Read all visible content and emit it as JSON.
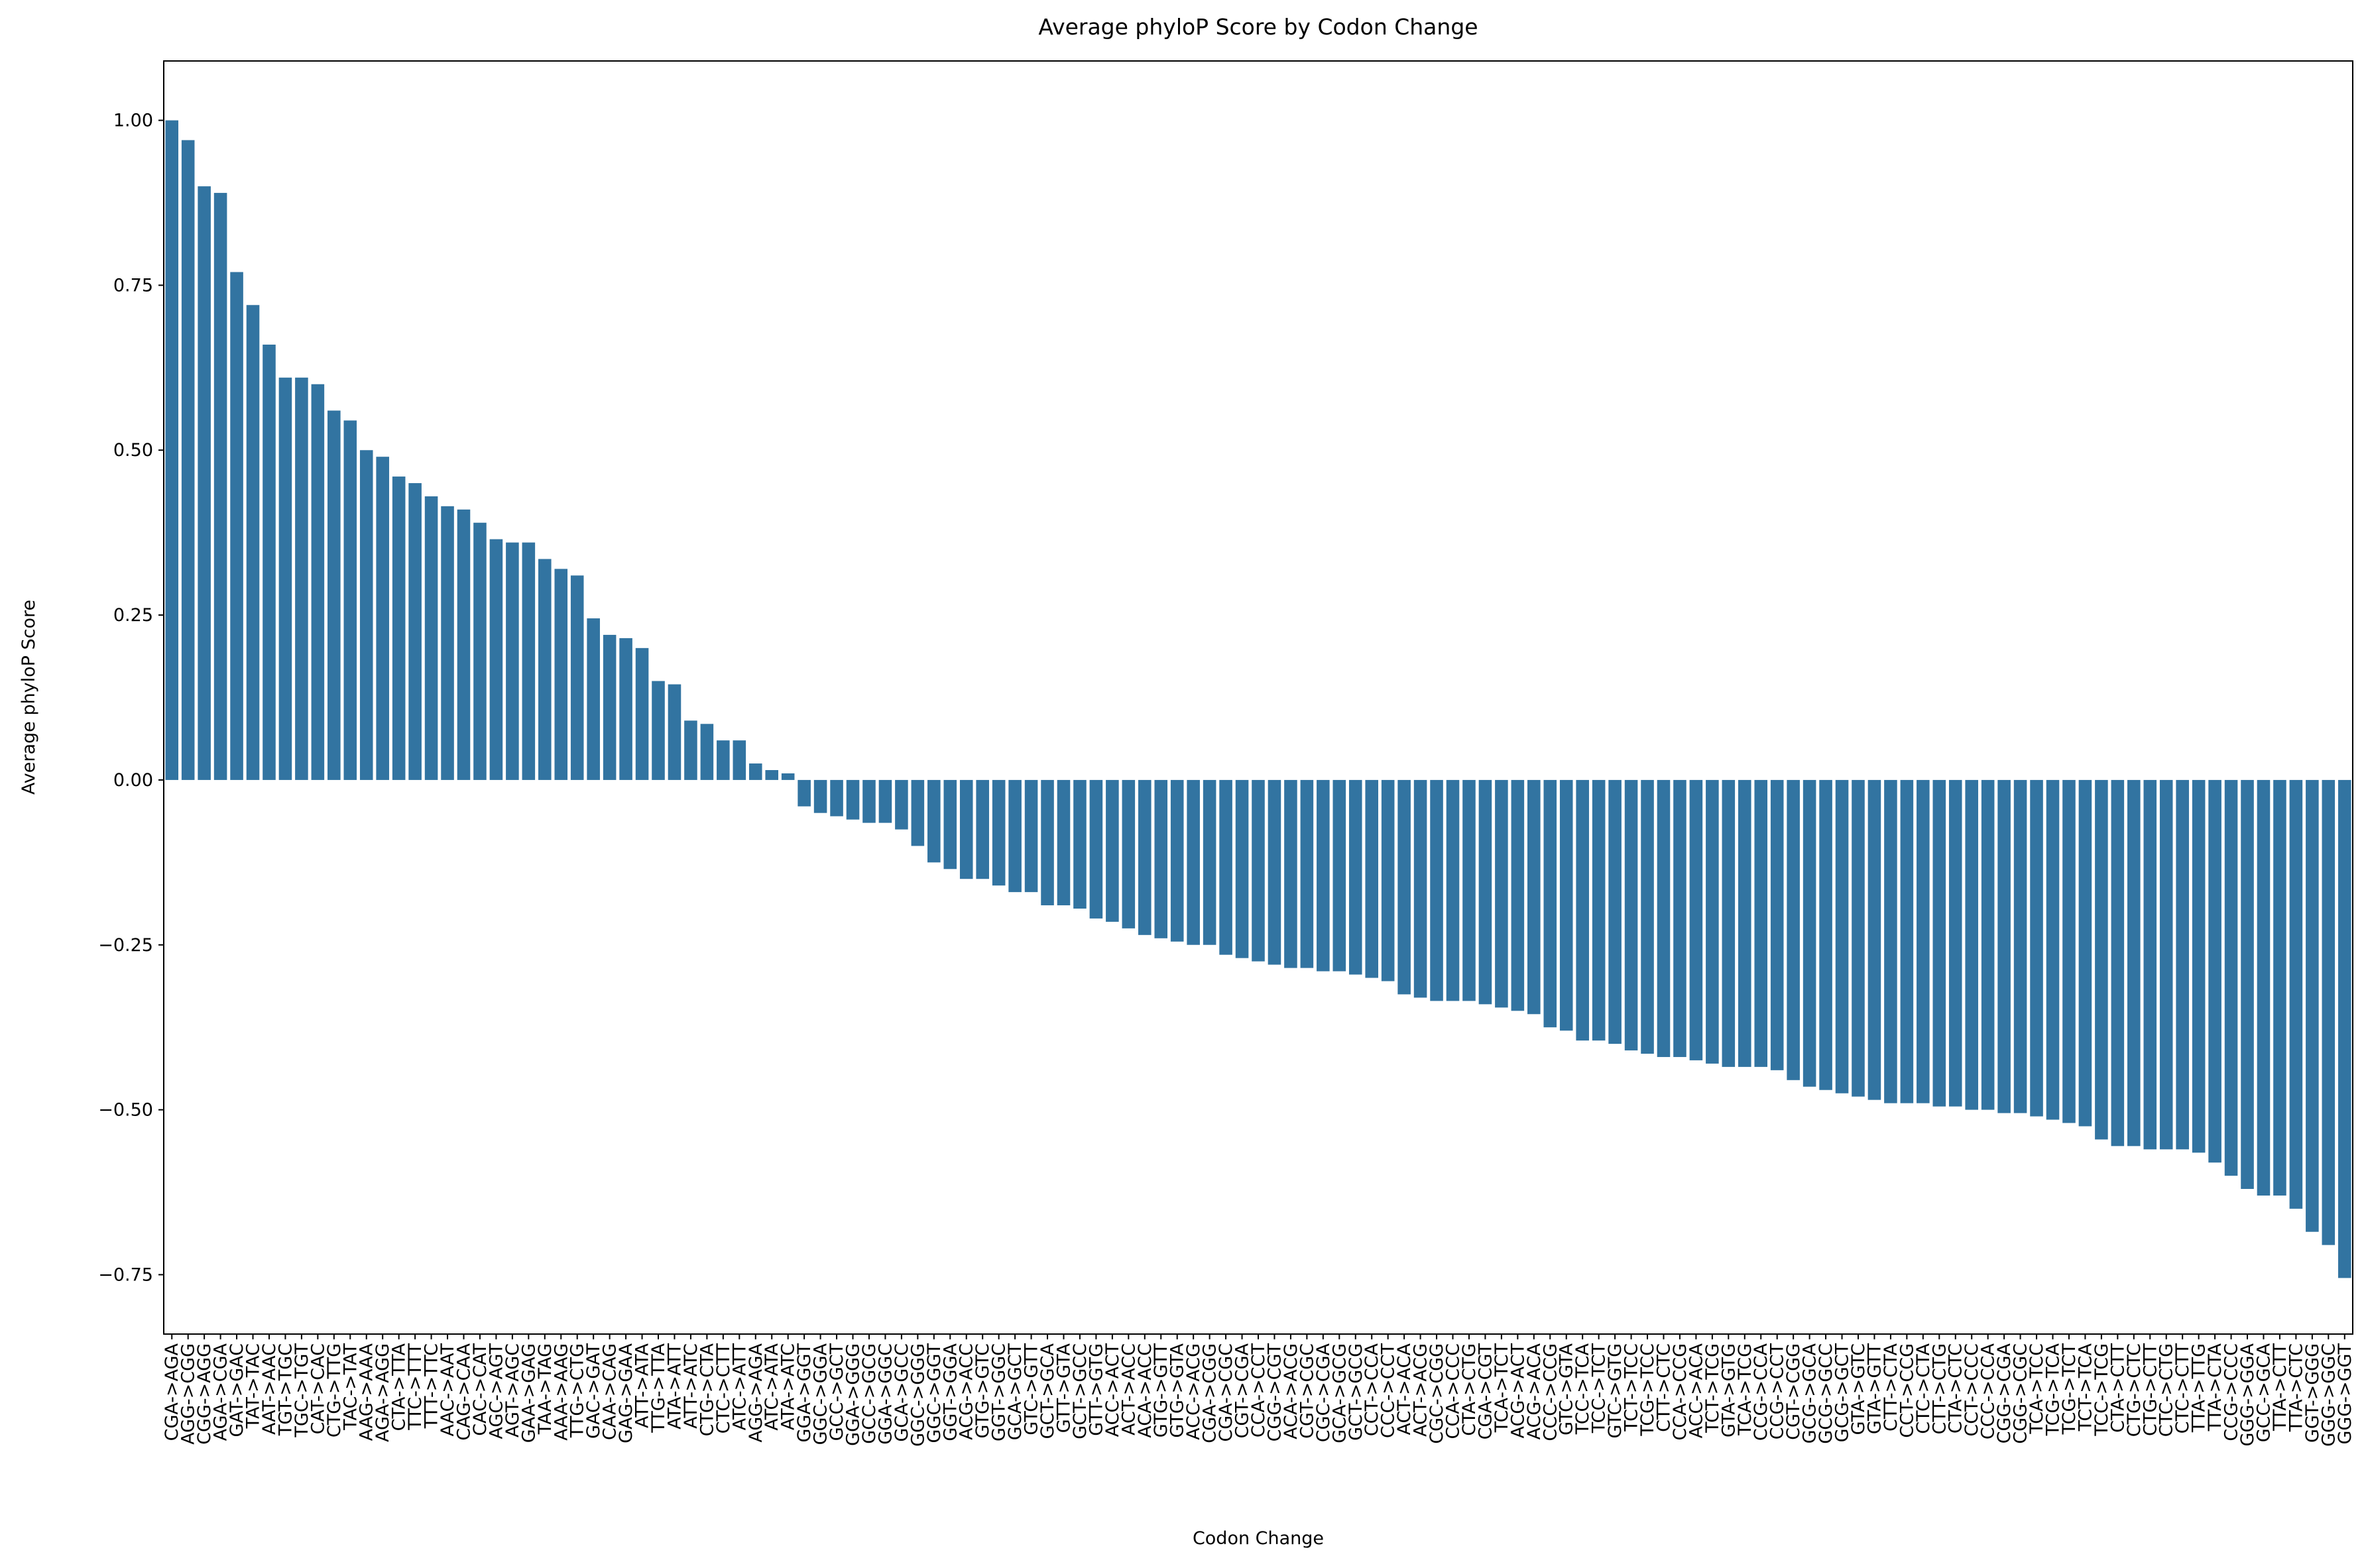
{
  "chart_data": {
    "type": "bar",
    "title": "Average phyloP Score by Codon Change",
    "x_label": "Codon Change",
    "y_label": "Average phyloP Score",
    "color": "#3274a1",
    "categories": [
      "CGA->AGA",
      "AGG->CGG",
      "CGG->AGG",
      "AGA->CGA",
      "GAT->GAC",
      "TAT->TAC",
      "AAT->AAC",
      "TGT->TGC",
      "TGC->TGT",
      "CAT->CAC",
      "CTG->TTG",
      "TAC->TAT",
      "AAG->AAA",
      "AGA->AGG",
      "CTA->TTA",
      "TTC->TTT",
      "TTT->TTC",
      "AAC->AAT",
      "CAG->CAA",
      "CAC->CAT",
      "AGC->AGT",
      "AGT->AGC",
      "GAA->GAG",
      "TAA->TAG",
      "AAA->AAG",
      "TTG->CTG",
      "GAC->GAT",
      "CAA->CAG",
      "GAG->GAA",
      "ATT->ATA",
      "TTG->TTA",
      "ATA->ATT",
      "ATT->ATC",
      "CTG->CTA",
      "CTC->CTT",
      "ATC->ATT",
      "AGG->AGA",
      "ATC->ATA",
      "ATA->ATC",
      "GGA->GGT",
      "GGC->GGA",
      "GCC->GCT",
      "GGA->GGG",
      "GCC->GCG",
      "GGA->GGC",
      "GCA->GCC",
      "GGC->GGG",
      "GGC->GGT",
      "GGT->GGA",
      "ACG->ACC",
      "GTG->GTC",
      "GGT->GGC",
      "GCA->GCT",
      "GTC->GTT",
      "GCT->GCA",
      "GTT->GTA",
      "GCT->GCC",
      "GTT->GTG",
      "ACC->ACT",
      "ACT->ACC",
      "ACA->ACC",
      "GTG->GTT",
      "GTG->GTA",
      "ACC->ACG",
      "CGA->CGG",
      "CGA->CGC",
      "CGT->CGA",
      "CCA->CCT",
      "CGG->CGT",
      "ACA->ACG",
      "CGT->CGC",
      "CGC->CGA",
      "GCA->GCG",
      "GCT->GCG",
      "CCT->CCA",
      "CCC->CCT",
      "ACT->ACA",
      "ACT->ACG",
      "CGC->CGG",
      "CCA->CCC",
      "CTA->CTG",
      "CGA->CGT",
      "TCA->TCT",
      "ACG->ACT",
      "ACG->ACA",
      "CCC->CCG",
      "GTC->GTA",
      "TCC->TCA",
      "TCC->TCT",
      "GTC->GTG",
      "TCT->TCC",
      "TCG->TCC",
      "CTT->CTC",
      "CCA->CCG",
      "ACC->ACA",
      "TCT->TCG",
      "GTA->GTG",
      "TCA->TCG",
      "CCG->CCA",
      "CCG->CCT",
      "CGT->CGG",
      "GCG->GCA",
      "GCG->GCC",
      "GCG->GCT",
      "GTA->GTC",
      "GTA->GTT",
      "CTT->CTA",
      "CCT->CCG",
      "CTC->CTA",
      "CTT->CTG",
      "CTA->CTC",
      "CCT->CCC",
      "CCC->CCA",
      "CGG->CGA",
      "CGG->CGC",
      "TCA->TCC",
      "TCG->TCA",
      "TCG->TCT",
      "TCT->TCA",
      "TCC->TCG",
      "CTA->CTT",
      "CTG->CTC",
      "CTG->CTT",
      "CTC->CTG",
      "CTC->CTT",
      "TTA->TTG",
      "TTA->CTA",
      "CCG->CCC",
      "GGG->GGA",
      "GCC->GCA",
      "TTA->CTT",
      "TTA->CTC",
      "GGT->GGG",
      "GGG->GGC",
      "GGG->GGT"
    ],
    "values": [
      1.0,
      0.97,
      0.9,
      0.89,
      0.77,
      0.72,
      0.66,
      0.61,
      0.61,
      0.6,
      0.56,
      0.545,
      0.5,
      0.49,
      0.46,
      0.45,
      0.43,
      0.415,
      0.41,
      0.39,
      0.365,
      0.36,
      0.36,
      0.335,
      0.32,
      0.31,
      0.245,
      0.22,
      0.215,
      0.2,
      0.15,
      0.145,
      0.09,
      0.085,
      0.06,
      0.06,
      0.025,
      0.015,
      0.01,
      -0.04,
      -0.05,
      -0.055,
      -0.06,
      -0.065,
      -0.065,
      -0.075,
      -0.1,
      -0.125,
      -0.135,
      -0.15,
      -0.15,
      -0.16,
      -0.17,
      -0.17,
      -0.19,
      -0.19,
      -0.195,
      -0.21,
      -0.215,
      -0.225,
      -0.235,
      -0.24,
      -0.245,
      -0.25,
      -0.25,
      -0.265,
      -0.27,
      -0.275,
      -0.28,
      -0.285,
      -0.285,
      -0.29,
      -0.29,
      -0.295,
      -0.3,
      -0.305,
      -0.325,
      -0.33,
      -0.335,
      -0.335,
      -0.335,
      -0.34,
      -0.345,
      -0.35,
      -0.355,
      -0.375,
      -0.38,
      -0.395,
      -0.395,
      -0.4,
      -0.41,
      -0.415,
      -0.42,
      -0.42,
      -0.425,
      -0.43,
      -0.435,
      -0.435,
      -0.435,
      -0.44,
      -0.455,
      -0.465,
      -0.47,
      -0.475,
      -0.48,
      -0.485,
      -0.49,
      -0.49,
      -0.49,
      -0.495,
      -0.495,
      -0.5,
      -0.5,
      -0.505,
      -0.505,
      -0.51,
      -0.515,
      -0.52,
      -0.525,
      -0.545,
      -0.555,
      -0.555,
      -0.56,
      -0.56,
      -0.56,
      -0.565,
      -0.58,
      -0.6,
      -0.62,
      -0.63,
      -0.63,
      -0.65,
      -0.685,
      -0.705,
      -0.755
    ],
    "ylim": [
      -0.84,
      1.09
    ],
    "yticks": [
      {
        "value": -0.75,
        "label": "−0.75"
      },
      {
        "value": -0.5,
        "label": "−0.50"
      },
      {
        "value": -0.25,
        "label": "−0.25"
      },
      {
        "value": 0,
        "label": "0.00"
      },
      {
        "value": 0.25,
        "label": "0.25"
      },
      {
        "value": 0.5,
        "label": "0.50"
      },
      {
        "value": 0.75,
        "label": "0.75"
      },
      {
        "value": 1,
        "label": "1.00"
      }
    ]
  }
}
